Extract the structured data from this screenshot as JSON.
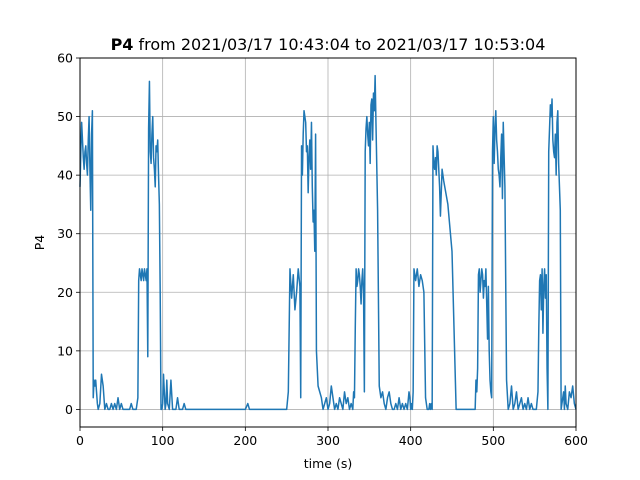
{
  "chart_data": {
    "type": "line",
    "title_bold": "P4",
    "title": "from 2021/03/17 10:43:04 to 2021/03/17 10:53:04",
    "xlabel": "time (s)",
    "ylabel": "P4",
    "xlim": [
      0,
      600
    ],
    "ylim": [
      -3,
      60
    ],
    "xticks": [
      0,
      100,
      200,
      300,
      400,
      500,
      600
    ],
    "yticks": [
      0,
      10,
      20,
      30,
      40,
      50,
      60
    ],
    "xtick_labels": [
      "0",
      "100",
      "200",
      "300",
      "400",
      "500",
      "600"
    ],
    "ytick_labels": [
      "0",
      "10",
      "20",
      "30",
      "40",
      "50",
      "60"
    ],
    "grid": true,
    "color": "#1f77b4",
    "series": [
      {
        "x": [
          0,
          1,
          2,
          3,
          4,
          5,
          6,
          7,
          8,
          9,
          10,
          11,
          12,
          13,
          14,
          15,
          16,
          17,
          18,
          19,
          20,
          21,
          22,
          24,
          26,
          28,
          30,
          32,
          34,
          36,
          38,
          40,
          42,
          44,
          46,
          48,
          50,
          52,
          54,
          56,
          58,
          60,
          62,
          64,
          66,
          68,
          70,
          71,
          72,
          73,
          74,
          75,
          76,
          77,
          78,
          79,
          80,
          81,
          82,
          83,
          84,
          85,
          86,
          87,
          88,
          89,
          90,
          91,
          92,
          93,
          94,
          95,
          96,
          97,
          98,
          99,
          100,
          101,
          102,
          103,
          104,
          105,
          106,
          108,
          110,
          112,
          114,
          116,
          118,
          120,
          122,
          124,
          126,
          128,
          130,
          140,
          150,
          160,
          170,
          180,
          190,
          195,
          200,
          203,
          205,
          207,
          210,
          220,
          230,
          240,
          245,
          248,
          250,
          252,
          254,
          256,
          258,
          260,
          262,
          264,
          266,
          267,
          268,
          269,
          270,
          271,
          272,
          273,
          274,
          275,
          276,
          277,
          278,
          279,
          280,
          281,
          282,
          283,
          284,
          285,
          286,
          288,
          290,
          292,
          294,
          296,
          298,
          300,
          302,
          304,
          306,
          308,
          310,
          312,
          314,
          316,
          318,
          320,
          322,
          324,
          326,
          328,
          330,
          331,
          332,
          333,
          334,
          335,
          336,
          337,
          338,
          339,
          340,
          341,
          342,
          343,
          344,
          345,
          346,
          347,
          348,
          349,
          350,
          351,
          352,
          353,
          354,
          355,
          356,
          357,
          358,
          360,
          362,
          364,
          366,
          368,
          370,
          372,
          374,
          376,
          378,
          380,
          382,
          384,
          386,
          388,
          390,
          392,
          394,
          396,
          398,
          399,
          400,
          401,
          402,
          403,
          404,
          405,
          406,
          408,
          410,
          412,
          414,
          416,
          418,
          420,
          421,
          422,
          423,
          424,
          425,
          426,
          427,
          428,
          429,
          430,
          431,
          432,
          433,
          434,
          435,
          436,
          438,
          440,
          445,
          450,
          455,
          460,
          465,
          470,
          472,
          474,
          476,
          477,
          478,
          479,
          480,
          481,
          482,
          483,
          484,
          485,
          486,
          487,
          488,
          489,
          490,
          491,
          492,
          493,
          494,
          495,
          496,
          497,
          498,
          499,
          500,
          501,
          502,
          503,
          504,
          505,
          506,
          507,
          508,
          509,
          510,
          511,
          512,
          514,
          516,
          518,
          520,
          522,
          524,
          526,
          528,
          530,
          532,
          534,
          536,
          538,
          540,
          542,
          544,
          546,
          548,
          550,
          552,
          554,
          555,
          556,
          557,
          558,
          559,
          560,
          561,
          562,
          563,
          564,
          565,
          566,
          567,
          568,
          569,
          570,
          571,
          572,
          573,
          574,
          575,
          576,
          577,
          578,
          579,
          580,
          581,
          582,
          583,
          584,
          585,
          586,
          587,
          588,
          590,
          592,
          594,
          596,
          598,
          600
        ],
        "y": [
          38,
          44,
          49,
          46,
          43,
          41,
          44,
          45,
          42,
          40,
          46,
          50,
          41,
          34,
          47,
          51,
          2,
          5,
          4,
          5,
          3,
          1,
          0,
          1,
          6,
          4,
          0,
          1,
          0,
          0,
          1,
          0,
          1,
          0,
          2,
          0,
          1,
          0,
          0,
          0,
          0,
          0,
          1,
          0,
          0,
          0,
          2,
          22,
          24,
          23,
          22,
          24,
          23,
          22,
          24,
          23,
          22,
          24,
          9,
          48,
          56,
          44,
          42,
          47,
          50,
          43,
          41,
          38,
          45,
          44,
          46,
          40,
          35,
          20,
          0,
          0,
          1,
          6,
          3,
          0,
          1,
          5,
          1,
          0,
          5,
          0,
          0,
          0,
          2,
          0,
          0,
          0,
          1,
          0,
          0,
          0,
          0,
          0,
          0,
          0,
          0,
          0,
          0,
          1,
          0,
          0,
          0,
          0,
          0,
          0,
          0,
          0,
          0,
          3,
          24,
          19,
          23,
          17,
          20,
          24,
          21,
          2,
          45,
          40,
          47,
          51,
          50,
          49,
          44,
          45,
          37,
          43,
          46,
          41,
          49,
          38,
          32,
          34,
          27,
          47,
          10,
          4,
          3,
          2,
          0,
          1,
          2,
          0,
          1,
          4,
          2,
          0,
          1,
          0,
          2,
          1,
          0,
          3,
          1,
          2,
          0,
          1,
          0,
          3,
          2,
          14,
          24,
          21,
          22,
          24,
          23,
          21,
          18,
          22,
          24,
          20,
          3,
          44,
          48,
          50,
          47,
          45,
          49,
          42,
          52,
          53,
          46,
          54,
          51,
          57,
          49,
          34,
          4,
          2,
          3,
          1,
          0,
          2,
          3,
          1,
          0,
          0,
          1,
          0,
          2,
          0,
          1,
          0,
          1,
          0,
          3,
          2,
          0,
          1,
          0,
          3,
          24,
          23,
          22,
          24,
          21,
          23,
          22,
          20,
          2,
          0,
          0,
          0,
          1,
          0,
          1,
          0,
          45,
          42,
          41,
          43,
          40,
          45,
          44,
          41,
          38,
          33,
          41,
          39,
          35,
          27,
          0,
          0,
          0,
          0,
          0,
          0,
          0,
          0,
          0,
          5,
          3,
          7,
          23,
          24,
          20,
          22,
          24,
          23,
          19,
          22,
          21,
          24,
          18,
          12,
          21,
          10,
          5,
          3,
          2,
          44,
          50,
          42,
          48,
          51,
          46,
          44,
          41,
          40,
          38,
          43,
          47,
          36,
          49,
          38,
          5,
          0,
          1,
          4,
          0,
          1,
          3,
          0,
          1,
          2,
          0,
          1,
          0,
          2,
          0,
          1,
          0,
          0,
          0,
          3,
          14,
          22,
          23,
          17,
          24,
          13,
          21,
          24,
          19,
          23,
          7,
          0,
          44,
          48,
          52,
          50,
          53,
          46,
          44,
          43,
          47,
          40,
          49,
          51,
          42,
          38,
          34,
          0,
          1,
          2,
          3,
          0,
          4,
          1,
          0,
          3,
          2,
          4,
          1,
          0
        ]
      }
    ]
  }
}
